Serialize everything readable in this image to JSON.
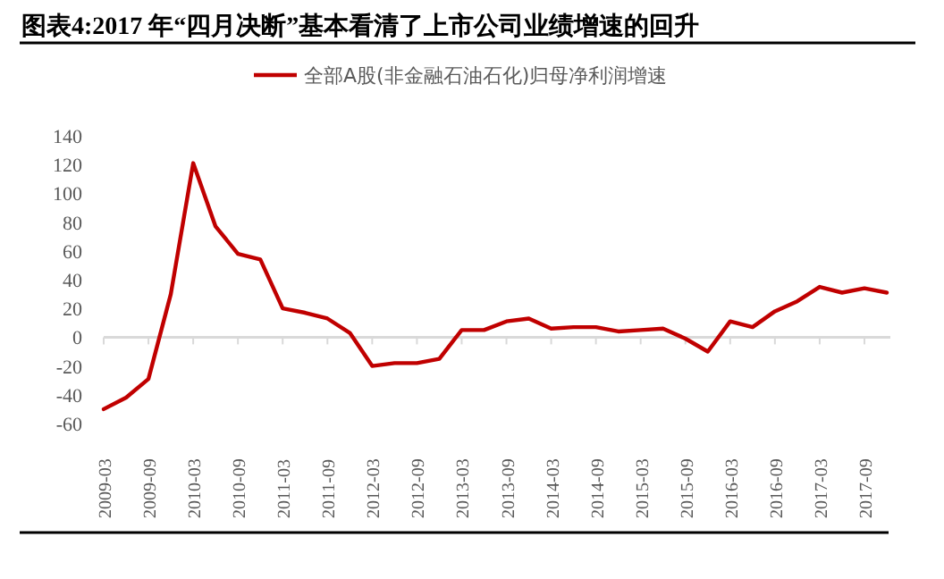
{
  "chart_data": {
    "type": "line",
    "title": "图表4:2017 年“四月决断”基本看清了上市公司业绩增速的回升",
    "categories": [
      "2009-03",
      null,
      "2009-09",
      null,
      "2010-03",
      null,
      "2010-09",
      null,
      "2011-03",
      null,
      "2011-09",
      null,
      "2012-03",
      null,
      "2012-09",
      null,
      "2013-03",
      null,
      "2013-09",
      null,
      "2014-03",
      null,
      "2014-09",
      null,
      "2015-03",
      null,
      "2015-09",
      null,
      "2016-03",
      null,
      "2016-09",
      null,
      "2017-03",
      null,
      "2017-09",
      null
    ],
    "series": [
      {
        "name": "全部A股(非金融石油石化)归母净利润增速",
        "color": "#c00000",
        "values": [
          -50,
          -42,
          -29,
          30,
          121,
          77,
          58,
          54,
          20,
          17,
          13,
          3,
          -20,
          -18,
          -18,
          -15,
          5,
          5,
          11,
          13,
          6,
          7,
          7,
          4,
          5,
          6,
          -1,
          -10,
          11,
          7,
          18,
          25,
          35,
          31,
          34,
          31
        ]
      }
    ],
    "ylim": [
      -60,
      140
    ],
    "yticks": [
      -60,
      -40,
      -20,
      0,
      20,
      40,
      60,
      80,
      100,
      120,
      140
    ],
    "ref_lines": [
      {
        "axis": "y",
        "value": 0,
        "color": "#d9d9d9"
      }
    ],
    "legend": "top",
    "grid": false,
    "marker": "none",
    "line_style": "solid"
  }
}
